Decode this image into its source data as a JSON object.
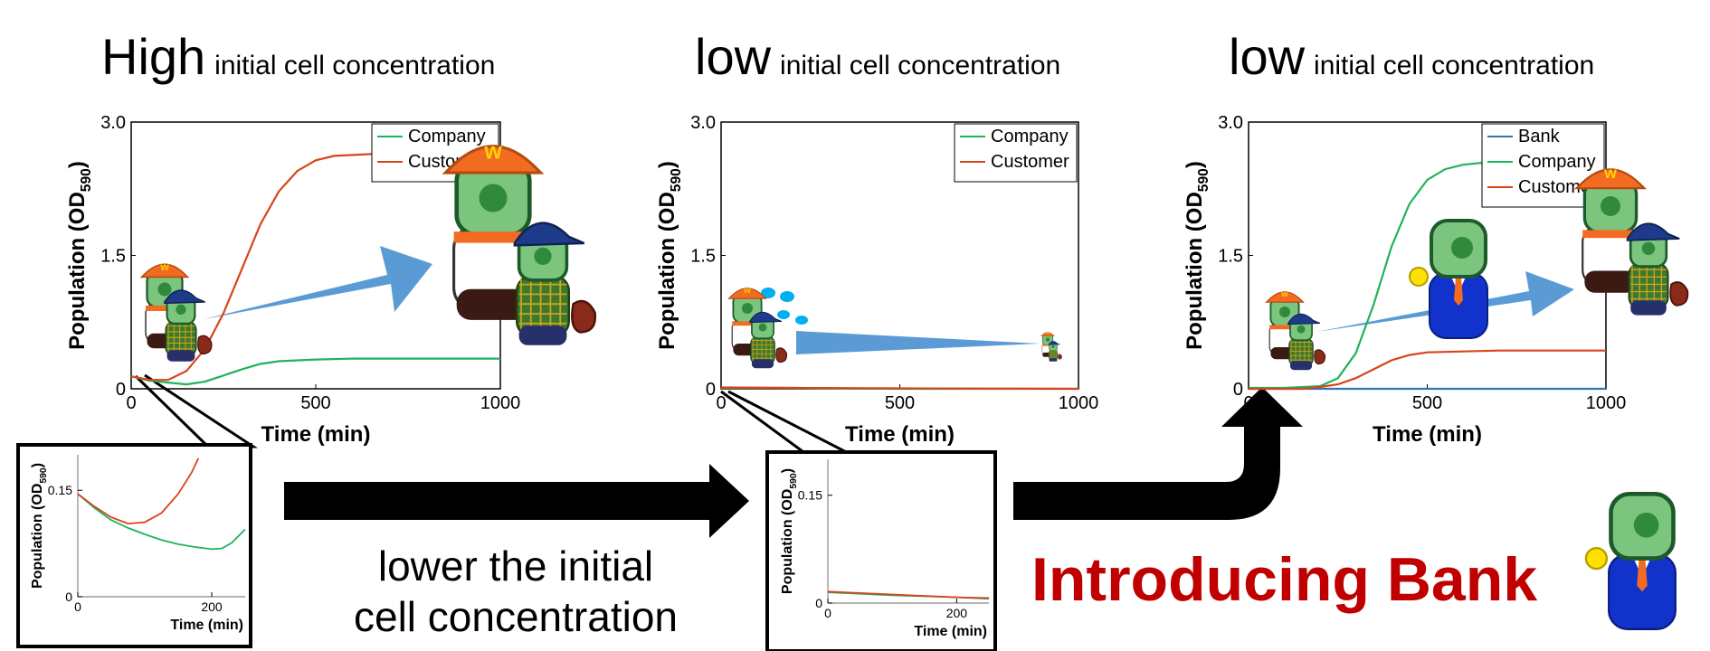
{
  "headings": [
    {
      "big": "High",
      "small": "initial cell concentration"
    },
    {
      "big": "low",
      "small": "initial cell concentration"
    },
    {
      "big": "low",
      "small": "initial cell concentration"
    }
  ],
  "caption": {
    "line1": "lower the initial",
    "line2": "cell concentration"
  },
  "bank_title": "Introducing Bank",
  "colors": {
    "bank": "#2e75b6",
    "company": "#1fb35a",
    "customer": "#d9441b",
    "arrow": "#5b9bd5"
  },
  "chart_data": [
    {
      "type": "line",
      "title": "",
      "xlabel": "Time (min)",
      "ylabel_main": "Population (OD",
      "ylabel_sub": "590",
      "ylabel_end": ")",
      "xlim": [
        0,
        1000
      ],
      "ylim": [
        0,
        3.0
      ],
      "xticks": [
        0,
        500,
        1000
      ],
      "yticks": [
        0,
        1.5,
        3.0
      ],
      "xtick_labels": [
        "0",
        "500",
        "1000"
      ],
      "ytick_labels": [
        "0",
        "1.5",
        "3.0"
      ],
      "grid": false,
      "legend": "top-right",
      "series": [
        {
          "name": "Company",
          "color": "#1fb35a",
          "x": [
            0,
            50,
            100,
            150,
            200,
            250,
            300,
            350,
            400,
            500,
            600,
            700,
            800,
            900,
            1000
          ],
          "y": [
            0.14,
            0.09,
            0.07,
            0.05,
            0.08,
            0.15,
            0.22,
            0.28,
            0.31,
            0.33,
            0.34,
            0.34,
            0.34,
            0.34,
            0.34
          ]
        },
        {
          "name": "Customer",
          "color": "#d9441b",
          "x": [
            0,
            50,
            100,
            150,
            200,
            250,
            300,
            350,
            400,
            450,
            500,
            550,
            600,
            650,
            700,
            800,
            1000
          ],
          "y": [
            0.14,
            0.1,
            0.1,
            0.2,
            0.45,
            0.85,
            1.35,
            1.85,
            2.22,
            2.45,
            2.57,
            2.62,
            2.63,
            2.64,
            2.65,
            2.65,
            2.65
          ]
        }
      ]
    },
    {
      "type": "line",
      "title": "",
      "xlabel": "Time (min)",
      "ylabel_main": "Population (OD",
      "ylabel_sub": "590",
      "ylabel_end": ")",
      "xlim": [
        0,
        1000
      ],
      "ylim": [
        0,
        3.0
      ],
      "xticks": [
        0,
        500,
        1000
      ],
      "yticks": [
        0,
        1.5,
        3.0
      ],
      "xtick_labels": [
        "0",
        "500",
        "1000"
      ],
      "ytick_labels": [
        "0",
        "1.5",
        "3.0"
      ],
      "grid": false,
      "legend": "top-right",
      "series": [
        {
          "name": "Company",
          "color": "#1fb35a",
          "x": [
            0,
            200,
            500,
            1000
          ],
          "y": [
            0.01,
            0.01,
            0.0,
            0.0
          ]
        },
        {
          "name": "Customer",
          "color": "#d9441b",
          "x": [
            0,
            200,
            500,
            1000
          ],
          "y": [
            0.015,
            0.01,
            0.005,
            0.0
          ]
        }
      ]
    },
    {
      "type": "line",
      "title": "",
      "xlabel": "Time (min)",
      "ylabel_main": "Population (OD",
      "ylabel_sub": "590",
      "ylabel_end": ")",
      "xlim": [
        0,
        1000
      ],
      "ylim": [
        0,
        3.0
      ],
      "xticks": [
        0,
        500,
        1000
      ],
      "yticks": [
        0,
        1.5,
        3.0
      ],
      "xtick_labels": [
        "0",
        "500",
        "1000"
      ],
      "ytick_labels": [
        "0",
        "1.5",
        "3.0"
      ],
      "grid": false,
      "legend": "top-right",
      "series": [
        {
          "name": "Bank",
          "color": "#2e75b6",
          "x": [
            0,
            1000
          ],
          "y": [
            0.0,
            0.0
          ]
        },
        {
          "name": "Company",
          "color": "#1fb35a",
          "x": [
            0,
            100,
            200,
            250,
            300,
            350,
            400,
            450,
            500,
            550,
            600,
            650,
            700
          ],
          "y": [
            0.01,
            0.01,
            0.03,
            0.12,
            0.4,
            0.95,
            1.6,
            2.08,
            2.35,
            2.47,
            2.52,
            2.54,
            2.55
          ]
        },
        {
          "name": "Customer",
          "color": "#d9441b",
          "x": [
            0,
            150,
            200,
            250,
            300,
            350,
            400,
            450,
            500,
            600,
            700,
            800,
            1000
          ],
          "y": [
            0.0,
            0.0,
            0.02,
            0.05,
            0.12,
            0.22,
            0.32,
            0.38,
            0.41,
            0.42,
            0.43,
            0.43,
            0.43
          ]
        }
      ]
    },
    {
      "type": "line",
      "xlabel": "Time (min)",
      "ylabel_main": "Population (OD",
      "ylabel_sub": "590",
      "ylabel_end": ")",
      "xlim": [
        0,
        250
      ],
      "ylim": [
        0,
        0.2
      ],
      "xticks": [
        0,
        200
      ],
      "yticks": [
        0,
        0.15
      ],
      "xtick_labels": [
        "0",
        "200"
      ],
      "ytick_labels": [
        "0",
        "0.15"
      ],
      "grid": false,
      "series": [
        {
          "name": "Company",
          "color": "#1fb35a",
          "x": [
            0,
            25,
            50,
            75,
            100,
            125,
            150,
            175,
            200,
            215,
            230,
            250
          ],
          "y": [
            0.145,
            0.125,
            0.108,
            0.097,
            0.088,
            0.08,
            0.074,
            0.07,
            0.067,
            0.068,
            0.076,
            0.095
          ]
        },
        {
          "name": "Customer",
          "color": "#d9441b",
          "x": [
            0,
            25,
            50,
            75,
            100,
            125,
            150,
            170,
            180
          ],
          "y": [
            0.145,
            0.127,
            0.112,
            0.103,
            0.105,
            0.118,
            0.145,
            0.175,
            0.195
          ]
        }
      ]
    },
    {
      "type": "line",
      "xlabel": "Time (min)",
      "ylabel_main": "Population (OD",
      "ylabel_sub": "590",
      "ylabel_end": ")",
      "xlim": [
        0,
        250
      ],
      "ylim": [
        0,
        0.2
      ],
      "xticks": [
        0,
        200
      ],
      "yticks": [
        0,
        0.15
      ],
      "xtick_labels": [
        "0",
        "200"
      ],
      "ytick_labels": [
        "0",
        "0.15"
      ],
      "grid": false,
      "series": [
        {
          "name": "Company",
          "color": "#1fb35a",
          "x": [
            0,
            100,
            200,
            250
          ],
          "y": [
            0.015,
            0.011,
            0.008,
            0.006
          ]
        },
        {
          "name": "Customer",
          "color": "#d9441b",
          "x": [
            0,
            100,
            200,
            250
          ],
          "y": [
            0.016,
            0.012,
            0.008,
            0.007
          ]
        }
      ]
    }
  ]
}
